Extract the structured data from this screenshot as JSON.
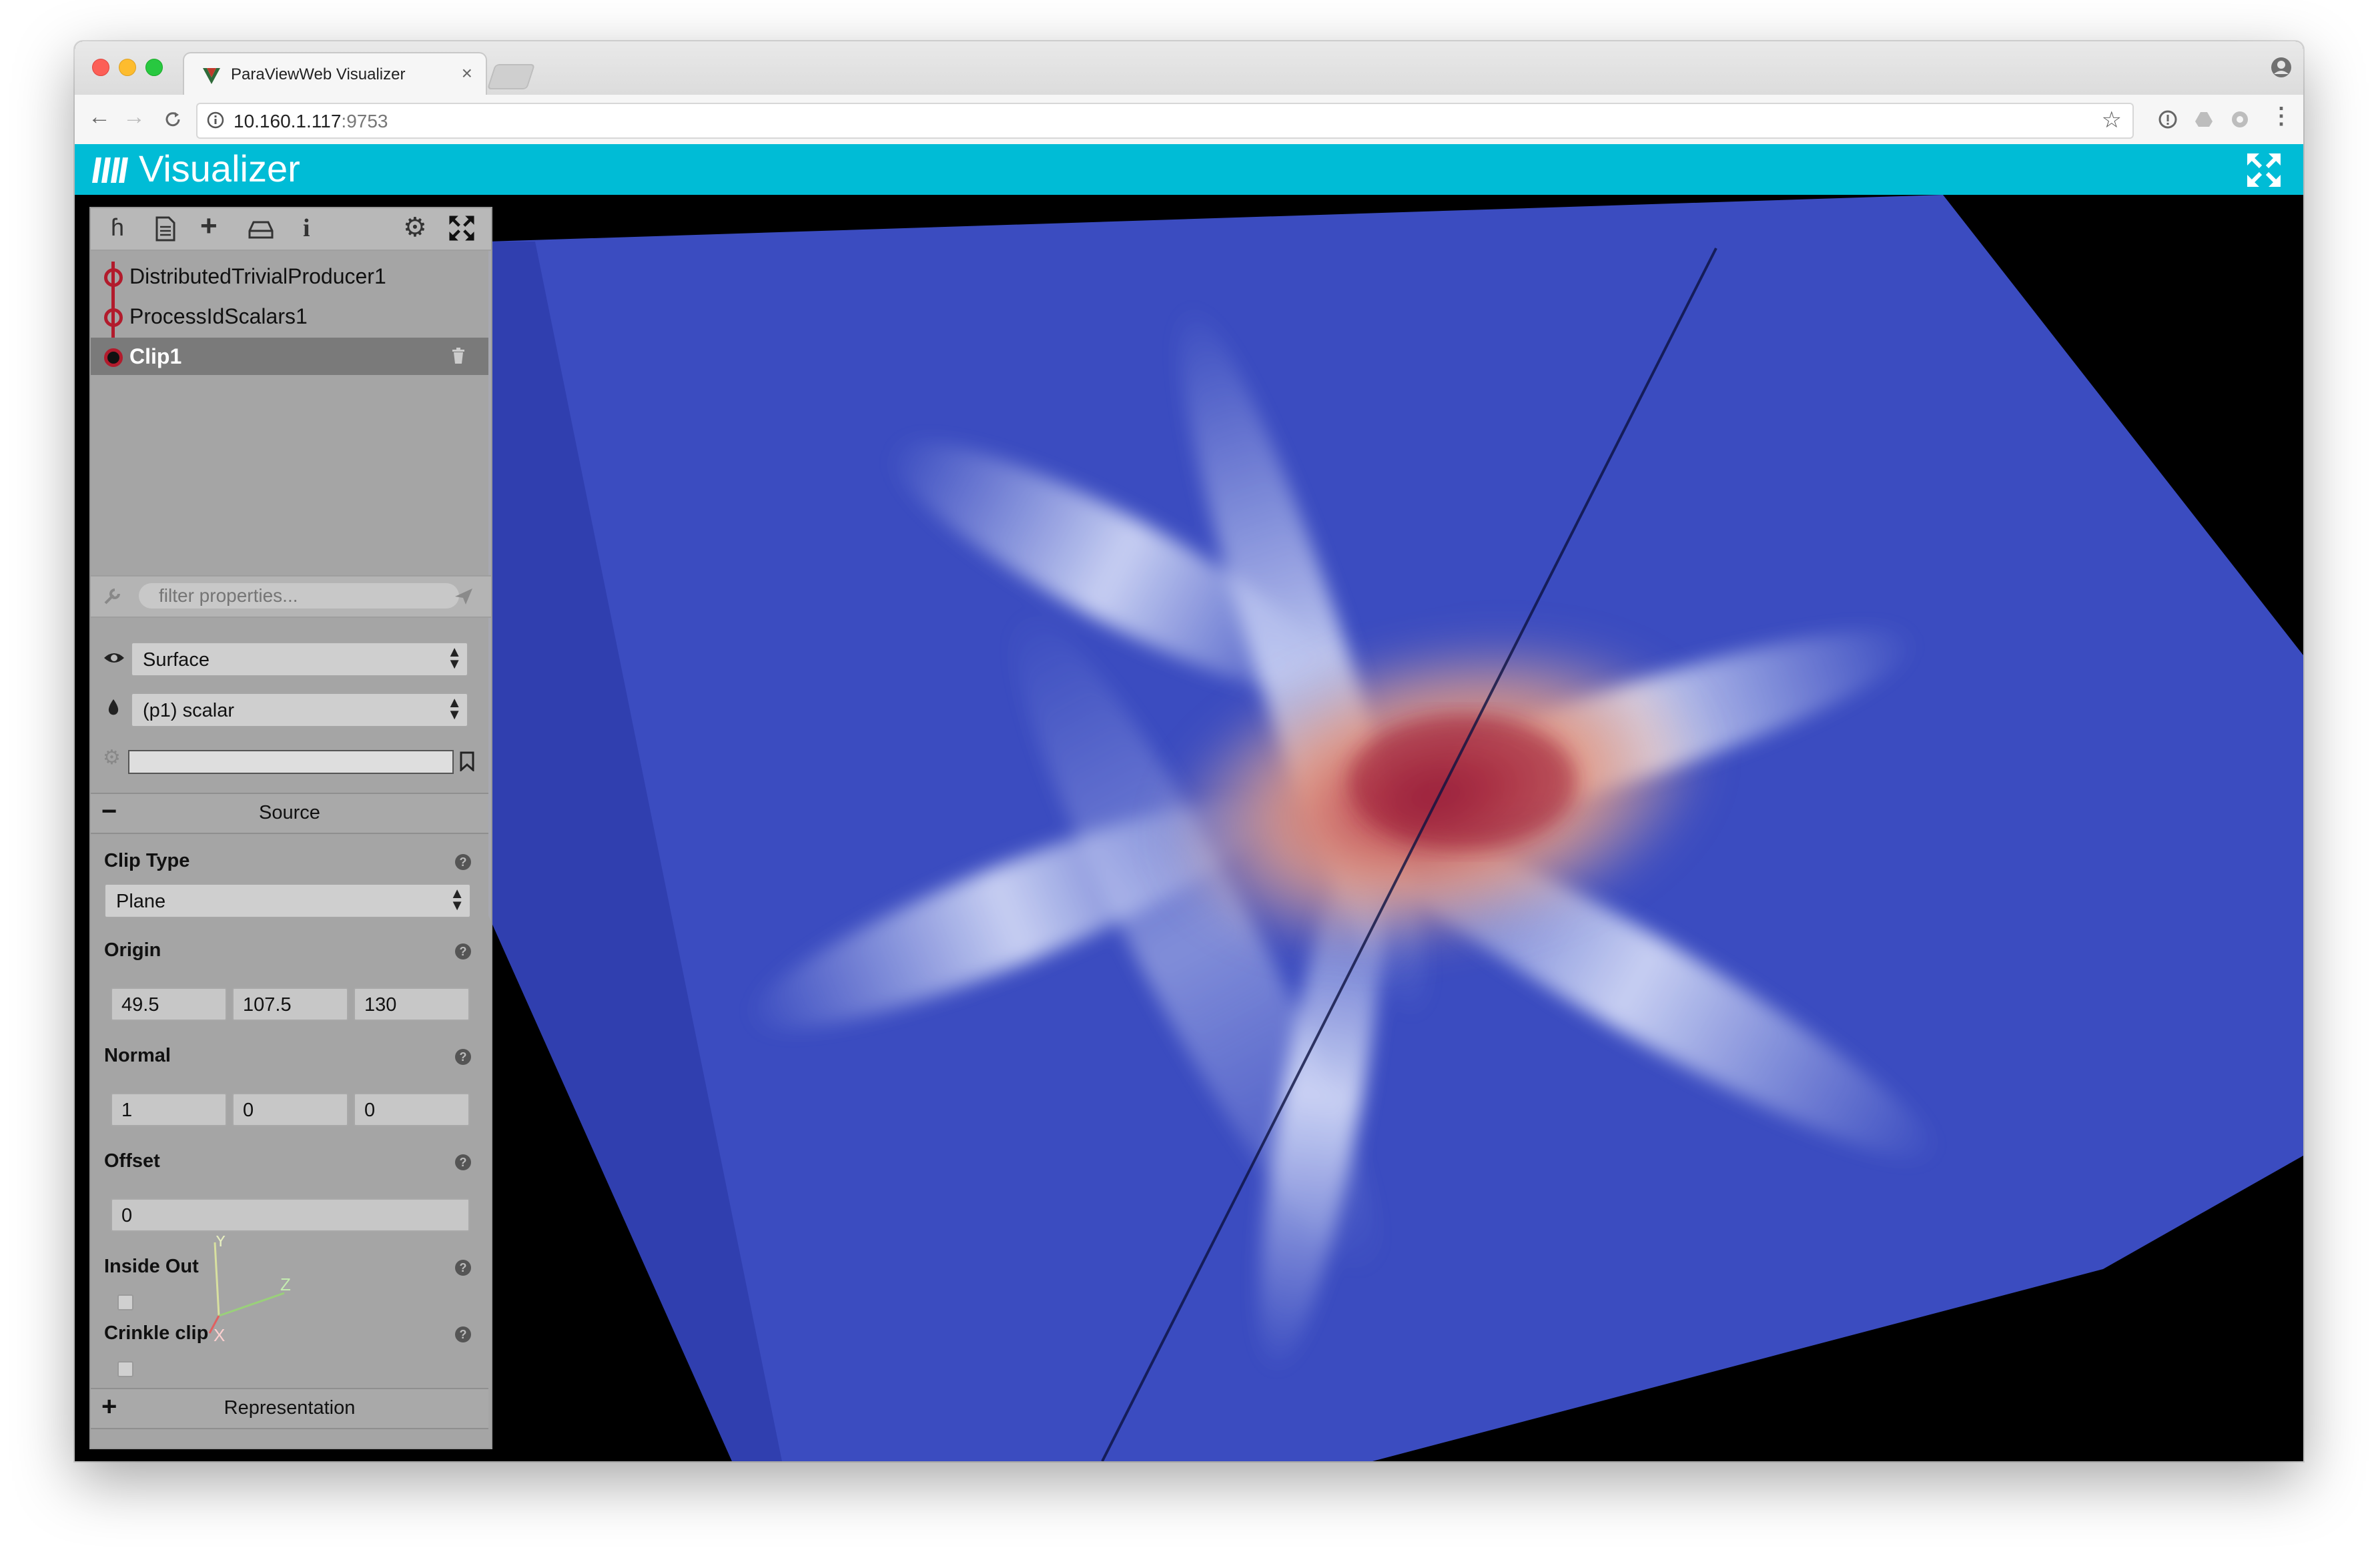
{
  "browser": {
    "tab_title": "ParaViewWeb Visualizer",
    "tab_close": "×",
    "url_host": "10.160.1.117",
    "url_port": ":9753"
  },
  "app": {
    "title": "Visualizer",
    "header_color": "#00bcd6"
  },
  "pipeline": {
    "items": [
      {
        "label": "DistributedTrivialProducer1"
      },
      {
        "label": "ProcessIdScalars1"
      },
      {
        "label": "Clip1",
        "selected": true
      }
    ],
    "node_color": "#b21b2c"
  },
  "filter": {
    "placeholder": "filter properties..."
  },
  "display": {
    "representation": "Surface",
    "color_by": "(p1) scalar"
  },
  "sections": {
    "source_label": "Source",
    "source_sign": "−",
    "representation_label": "Representation",
    "representation_sign": "+"
  },
  "properties": {
    "clip_type": {
      "label": "Clip Type",
      "value": "Plane"
    },
    "origin": {
      "label": "Origin",
      "values": [
        "49.5",
        "107.5",
        "130"
      ]
    },
    "normal": {
      "label": "Normal",
      "values": [
        "1",
        "0",
        "0"
      ]
    },
    "offset": {
      "label": "Offset",
      "value": "0"
    },
    "inside_out": {
      "label": "Inside Out"
    },
    "crinkle_clip": {
      "label": "Crinkle clip"
    }
  },
  "axes": {
    "x": "X",
    "y": "Y",
    "z": "Z"
  },
  "colors": {
    "volume_blue": "#3b4cc0",
    "core_red": "#e86f52"
  }
}
